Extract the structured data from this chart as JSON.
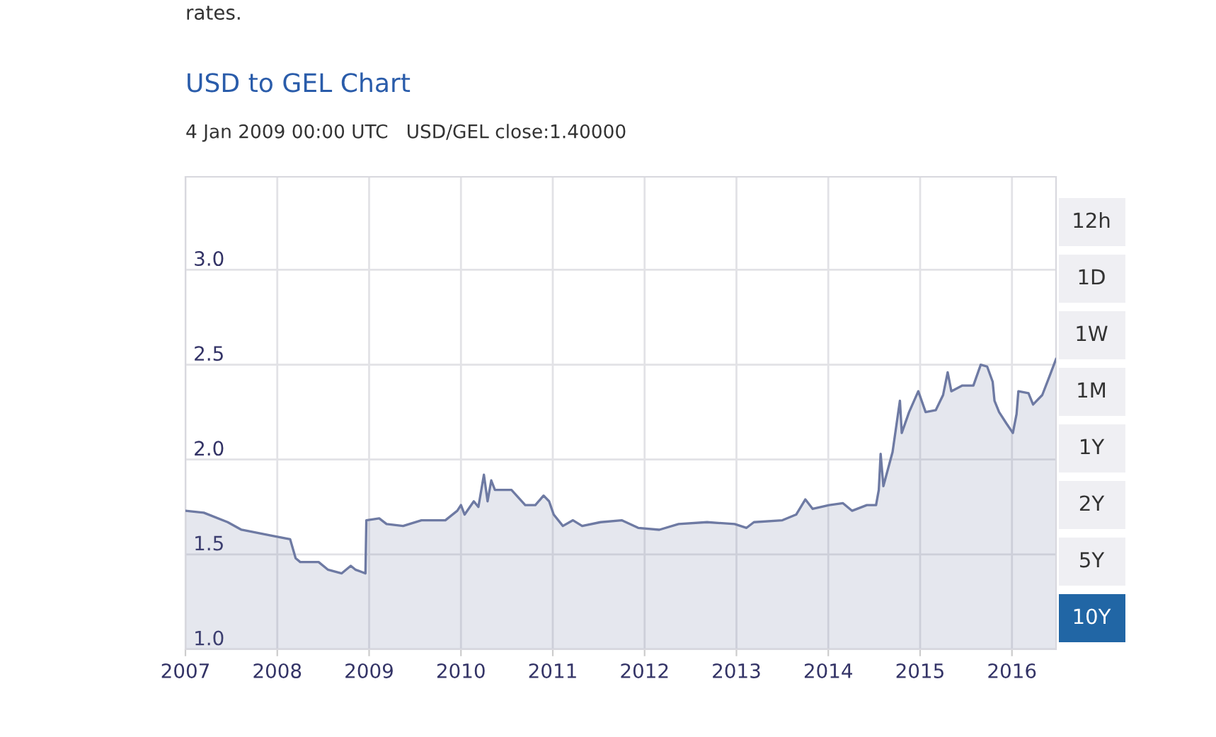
{
  "chart_data": {
    "type": "area",
    "title": "USD to GEL Chart",
    "subtitle": "rates.",
    "annotations": [
      "4 Jan 2009 00:00 UTC   USD/GEL close:1.40000",
      "12h",
      "1D",
      "1W",
      "1M",
      "1Y",
      "2Y",
      "5Y",
      "10Y"
    ],
    "x": [
      2007.0,
      2007.2,
      2007.46,
      2007.61,
      2007.93,
      2008.14,
      2008.2,
      2008.25,
      2008.45,
      2008.55,
      2008.7,
      2008.8,
      2008.85,
      2008.96,
      2008.97,
      2009.11,
      2009.19,
      2009.37,
      2009.57,
      2009.83,
      2009.96,
      2010.0,
      2010.04,
      2010.14,
      2010.19,
      2010.25,
      2010.29,
      2010.33,
      2010.37,
      2010.55,
      2010.7,
      2010.81,
      2010.9,
      2010.96,
      2011.01,
      2011.11,
      2011.22,
      2011.32,
      2011.52,
      2011.75,
      2011.93,
      2012.16,
      2012.37,
      2012.68,
      2012.98,
      2013.11,
      2013.19,
      2013.5,
      2013.65,
      2013.75,
      2013.83,
      2014.01,
      2014.16,
      2014.26,
      2014.42,
      2014.52,
      2014.55,
      2014.57,
      2014.6,
      2014.7,
      2014.78,
      2014.8,
      2014.88,
      2014.98,
      2015.06,
      2015.17,
      2015.25,
      2015.3,
      2015.34,
      2015.46,
      2015.58,
      2015.66,
      2015.73,
      2015.79,
      2015.81,
      2015.86,
      2015.94,
      2016.01,
      2016.05,
      2016.07,
      2016.18,
      2016.23,
      2016.33,
      2016.41,
      2016.48
    ],
    "series": [
      {
        "color": "#6e7aa3",
        "values": [
          1.73,
          1.72,
          1.67,
          1.63,
          1.6,
          1.58,
          1.48,
          1.46,
          1.46,
          1.42,
          1.4,
          1.44,
          1.42,
          1.4,
          1.68,
          1.69,
          1.66,
          1.65,
          1.68,
          1.68,
          1.73,
          1.76,
          1.71,
          1.78,
          1.75,
          1.92,
          1.78,
          1.89,
          1.84,
          1.84,
          1.76,
          1.76,
          1.81,
          1.78,
          1.71,
          1.65,
          1.68,
          1.65,
          1.67,
          1.68,
          1.64,
          1.63,
          1.66,
          1.67,
          1.66,
          1.64,
          1.67,
          1.68,
          1.71,
          1.79,
          1.74,
          1.76,
          1.77,
          1.73,
          1.76,
          1.76,
          1.84,
          2.03,
          1.86,
          2.04,
          2.31,
          2.14,
          2.25,
          2.36,
          2.25,
          2.26,
          2.34,
          2.46,
          2.36,
          2.39,
          2.39,
          2.5,
          2.49,
          2.41,
          2.31,
          2.25,
          2.19,
          2.14,
          2.24,
          2.36,
          2.35,
          2.29,
          2.34,
          2.44,
          2.53
        ]
      }
    ],
    "xlim": [
      2007.0,
      2016.48
    ],
    "xticks": [
      2007,
      2008,
      2009,
      2010,
      2011,
      2012,
      2013,
      2014,
      2015,
      2016
    ],
    "ylim": [
      1.0,
      3.49
    ],
    "yticks": [
      {
        "value": 1.0,
        "label": "1.0"
      },
      {
        "value": 1.5,
        "label": "1.5"
      },
      {
        "value": 2.0,
        "label": "2.0"
      },
      {
        "value": 2.5,
        "label": "2.5"
      },
      {
        "value": 3.0,
        "label": "3.0"
      }
    ],
    "grid": true,
    "legend": false
  }
}
